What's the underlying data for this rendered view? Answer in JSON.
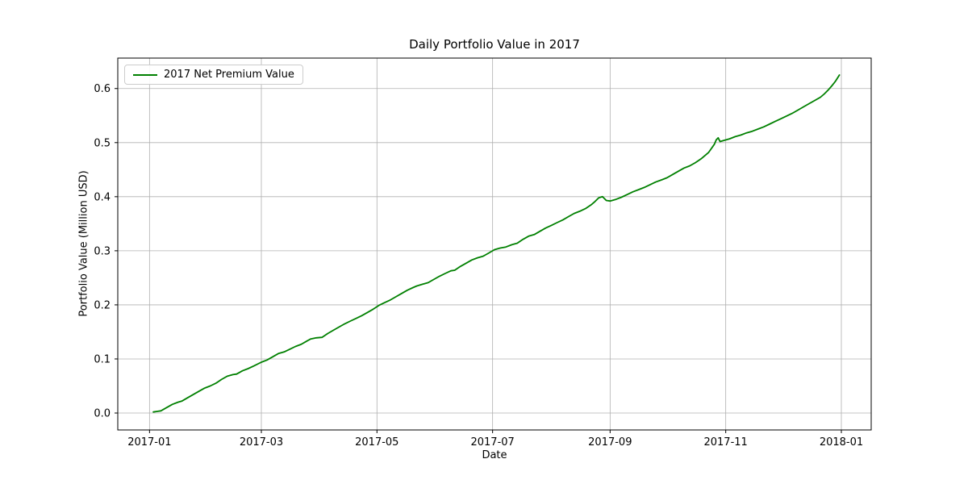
{
  "figure": {
    "title": "Daily Portfolio Value in 2017",
    "xlabel": "Date",
    "ylabel": "Portfolio Value (Million USD)"
  },
  "legend": {
    "label": "2017 Net Premium Value",
    "position": "upper left"
  },
  "colors": {
    "line": "#008000",
    "grid": "#b0b0b0",
    "spine": "#000000",
    "background": "#ffffff"
  },
  "chart_data": {
    "type": "line",
    "title": "Daily Portfolio Value in 2017",
    "xlabel": "Date",
    "ylabel": "Portfolio Value (Million USD)",
    "grid": true,
    "legend_position": "upper left",
    "x_unit": "days since 2017-01-01",
    "x_domain": [
      -16.75,
      380.75
    ],
    "y_domain": [
      -0.0313,
      0.6563
    ],
    "x_ticks": [
      {
        "day": 0,
        "label": "2017-01"
      },
      {
        "day": 59,
        "label": "2017-03"
      },
      {
        "day": 120,
        "label": "2017-05"
      },
      {
        "day": 181,
        "label": "2017-07"
      },
      {
        "day": 243,
        "label": "2017-09"
      },
      {
        "day": 304,
        "label": "2017-11"
      },
      {
        "day": 365,
        "label": "2018-01"
      }
    ],
    "y_ticks": [
      {
        "value": 0.0,
        "label": "0.0"
      },
      {
        "value": 0.1,
        "label": "0.1"
      },
      {
        "value": 0.2,
        "label": "0.2"
      },
      {
        "value": 0.3,
        "label": "0.3"
      },
      {
        "value": 0.4,
        "label": "0.4"
      },
      {
        "value": 0.5,
        "label": "0.5"
      },
      {
        "value": 0.6,
        "label": "0.6"
      }
    ],
    "series": [
      {
        "name": "2017 Net Premium Value",
        "color": "#008000",
        "points": [
          [
            2,
            0.002
          ],
          [
            4,
            0.003
          ],
          [
            6,
            0.004
          ],
          [
            9,
            0.01
          ],
          [
            12,
            0.016
          ],
          [
            15,
            0.02
          ],
          [
            17,
            0.022
          ],
          [
            20,
            0.028
          ],
          [
            23,
            0.034
          ],
          [
            26,
            0.04
          ],
          [
            29,
            0.046
          ],
          [
            32,
            0.05
          ],
          [
            35,
            0.055
          ],
          [
            38,
            0.062
          ],
          [
            41,
            0.068
          ],
          [
            44,
            0.071
          ],
          [
            46,
            0.072
          ],
          [
            49,
            0.078
          ],
          [
            52,
            0.082
          ],
          [
            55,
            0.087
          ],
          [
            59,
            0.094
          ],
          [
            62,
            0.098
          ],
          [
            65,
            0.104
          ],
          [
            68,
            0.11
          ],
          [
            71,
            0.113
          ],
          [
            74,
            0.118
          ],
          [
            77,
            0.123
          ],
          [
            80,
            0.127
          ],
          [
            83,
            0.133
          ],
          [
            85,
            0.137
          ],
          [
            88,
            0.139
          ],
          [
            91,
            0.14
          ],
          [
            94,
            0.147
          ],
          [
            97,
            0.153
          ],
          [
            100,
            0.159
          ],
          [
            103,
            0.165
          ],
          [
            106,
            0.17
          ],
          [
            109,
            0.175
          ],
          [
            112,
            0.18
          ],
          [
            115,
            0.186
          ],
          [
            118,
            0.192
          ],
          [
            121,
            0.199
          ],
          [
            124,
            0.204
          ],
          [
            127,
            0.209
          ],
          [
            130,
            0.215
          ],
          [
            133,
            0.221
          ],
          [
            136,
            0.227
          ],
          [
            139,
            0.232
          ],
          [
            141,
            0.235
          ],
          [
            144,
            0.238
          ],
          [
            147,
            0.241
          ],
          [
            150,
            0.247
          ],
          [
            153,
            0.253
          ],
          [
            156,
            0.258
          ],
          [
            159,
            0.263
          ],
          [
            161,
            0.264
          ],
          [
            164,
            0.271
          ],
          [
            167,
            0.277
          ],
          [
            170,
            0.283
          ],
          [
            173,
            0.287
          ],
          [
            176,
            0.29
          ],
          [
            179,
            0.296
          ],
          [
            182,
            0.302
          ],
          [
            185,
            0.305
          ],
          [
            188,
            0.307
          ],
          [
            191,
            0.311
          ],
          [
            194,
            0.314
          ],
          [
            197,
            0.321
          ],
          [
            200,
            0.327
          ],
          [
            203,
            0.33
          ],
          [
            206,
            0.336
          ],
          [
            209,
            0.342
          ],
          [
            212,
            0.347
          ],
          [
            215,
            0.352
          ],
          [
            218,
            0.357
          ],
          [
            221,
            0.363
          ],
          [
            224,
            0.369
          ],
          [
            227,
            0.373
          ],
          [
            230,
            0.378
          ],
          [
            233,
            0.385
          ],
          [
            235,
            0.391
          ],
          [
            237,
            0.398
          ],
          [
            239,
            0.4
          ],
          [
            241,
            0.393
          ],
          [
            243,
            0.392
          ],
          [
            246,
            0.395
          ],
          [
            249,
            0.399
          ],
          [
            252,
            0.404
          ],
          [
            255,
            0.409
          ],
          [
            258,
            0.413
          ],
          [
            261,
            0.417
          ],
          [
            264,
            0.422
          ],
          [
            267,
            0.427
          ],
          [
            270,
            0.431
          ],
          [
            273,
            0.435
          ],
          [
            276,
            0.441
          ],
          [
            279,
            0.447
          ],
          [
            282,
            0.453
          ],
          [
            285,
            0.457
          ],
          [
            288,
            0.463
          ],
          [
            291,
            0.47
          ],
          [
            293,
            0.476
          ],
          [
            295,
            0.482
          ],
          [
            296,
            0.487
          ],
          [
            298,
            0.497
          ],
          [
            299,
            0.505
          ],
          [
            300,
            0.509
          ],
          [
            301,
            0.502
          ],
          [
            303,
            0.504
          ],
          [
            306,
            0.507
          ],
          [
            309,
            0.511
          ],
          [
            312,
            0.514
          ],
          [
            315,
            0.518
          ],
          [
            318,
            0.521
          ],
          [
            321,
            0.525
          ],
          [
            324,
            0.529
          ],
          [
            327,
            0.534
          ],
          [
            330,
            0.539
          ],
          [
            333,
            0.544
          ],
          [
            336,
            0.549
          ],
          [
            339,
            0.554
          ],
          [
            342,
            0.56
          ],
          [
            345,
            0.566
          ],
          [
            348,
            0.572
          ],
          [
            351,
            0.578
          ],
          [
            354,
            0.584
          ],
          [
            356,
            0.59
          ],
          [
            358,
            0.597
          ],
          [
            360,
            0.605
          ],
          [
            362,
            0.614
          ],
          [
            364,
            0.625
          ]
        ]
      }
    ]
  }
}
